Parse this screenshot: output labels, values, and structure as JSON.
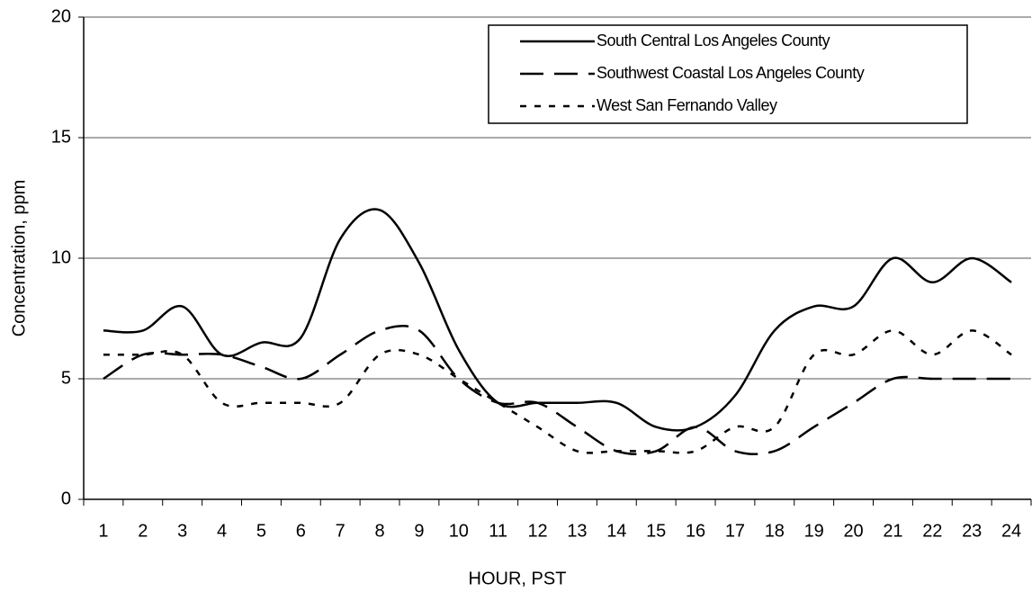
{
  "chart_data": {
    "type": "line",
    "x_label": "HOUR, PST",
    "y_label": "Concentration, ppm",
    "categories": [
      "1",
      "2",
      "3",
      "4",
      "5",
      "6",
      "7",
      "8",
      "9",
      "10",
      "11",
      "12",
      "13",
      "14",
      "15",
      "16",
      "17",
      "18",
      "19",
      "20",
      "21",
      "22",
      "23",
      "24"
    ],
    "series": [
      {
        "name": "South Central Los Angeles County",
        "color": "#000000",
        "style": "solid",
        "values": [
          7,
          7,
          8,
          6,
          6.5,
          6.7,
          10.8,
          12,
          9.8,
          6.2,
          4,
          4,
          4,
          4,
          3,
          3,
          4.3,
          7,
          8,
          8,
          10,
          9,
          10,
          9
        ]
      },
      {
        "name": "Southwest Coastal Los Angeles County",
        "color": "#000000",
        "style": "dashed",
        "values": [
          5,
          6,
          6,
          6,
          5.5,
          5,
          6,
          7,
          7,
          5,
          4,
          4,
          3,
          2,
          2,
          3,
          2,
          2,
          3,
          4,
          5,
          5,
          5,
          5
        ]
      },
      {
        "name": "West San Fernando Valley",
        "color": "#000000",
        "style": "dotted",
        "values": [
          6,
          6,
          6,
          4,
          4,
          4,
          4,
          6,
          6,
          5,
          4,
          3,
          2,
          2,
          2,
          2,
          3,
          3,
          6,
          6,
          7,
          6,
          7,
          6
        ]
      }
    ],
    "ylim": [
      0,
      20
    ],
    "yticks": [
      0,
      5,
      10,
      15,
      20
    ],
    "grid": true,
    "legend": "top-right"
  }
}
